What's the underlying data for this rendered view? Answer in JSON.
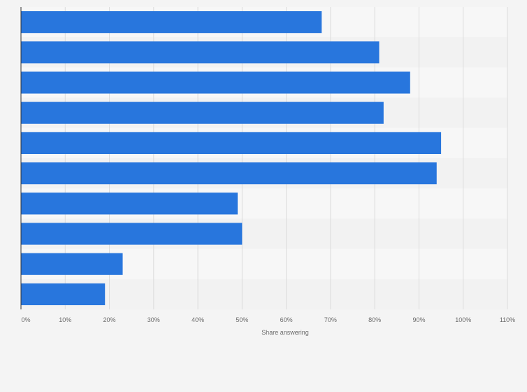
{
  "chart_data": {
    "type": "bar",
    "orientation": "horizontal",
    "title": "",
    "xlabel": "Share answering",
    "ylabel": "",
    "xlim": [
      0,
      110
    ],
    "x_ticks": [
      0,
      10,
      20,
      30,
      40,
      50,
      60,
      70,
      80,
      90,
      100,
      110
    ],
    "x_tick_labels": [
      "0%",
      "10%",
      "20%",
      "30%",
      "40%",
      "50%",
      "60%",
      "70%",
      "80%",
      "90%",
      "100%",
      "110%"
    ],
    "categories": [
      "",
      "",
      "",
      "",
      "",
      "",
      "",
      "",
      "",
      ""
    ],
    "values": [
      68,
      81,
      88,
      82,
      95,
      94,
      49,
      50,
      23,
      19
    ],
    "unit": "%",
    "grid": true,
    "colors": {
      "bar": "#2876dd",
      "band_light": "#f7f7f7",
      "band_dark": "#f2f2f2",
      "grid": "#dcdcdc",
      "axis": "#333333"
    }
  }
}
